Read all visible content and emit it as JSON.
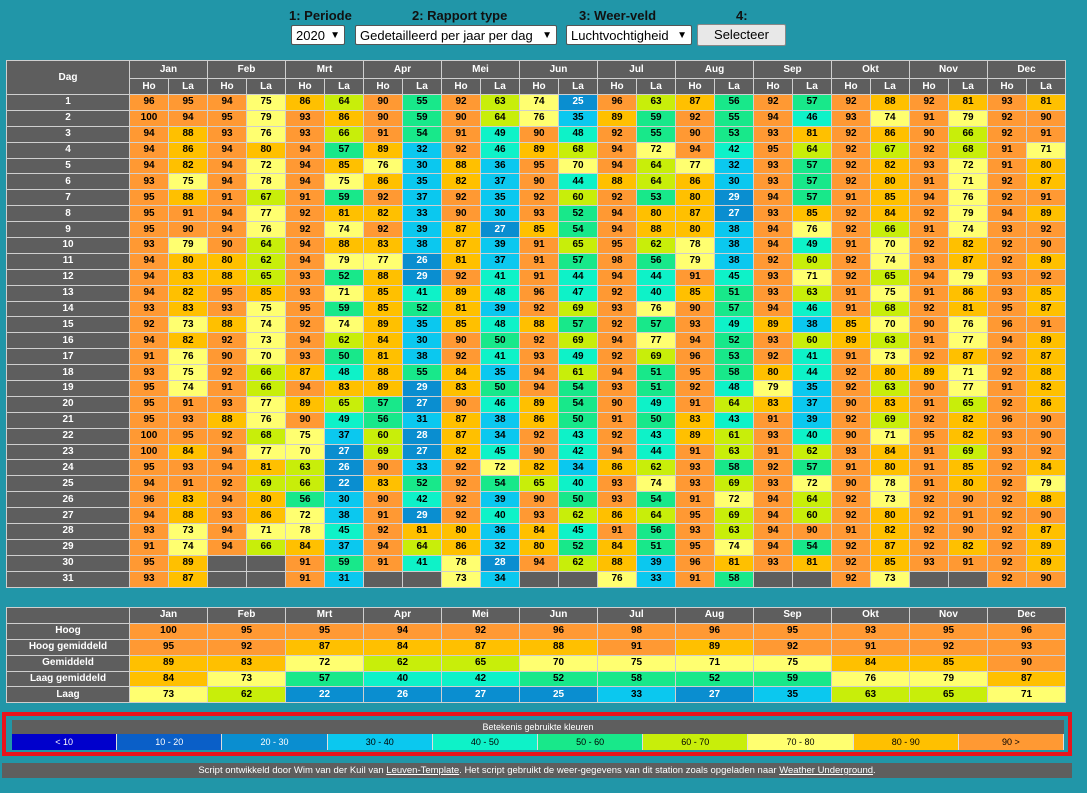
{
  "controls": {
    "periode_label": "1: Periode",
    "periode_value": "2020",
    "rapport_label": "2: Rapport type",
    "rapport_value": "Gedetailleerd per jaar per dag",
    "veld_label": "3: Weer-veld",
    "veld_value": "Luchtvochtigheid",
    "step4_label": "4:",
    "select_button": "Selecteer"
  },
  "table": {
    "day_header": "Dag",
    "months": [
      "Jan",
      "Feb",
      "Mrt",
      "Apr",
      "Mei",
      "Jun",
      "Jul",
      "Aug",
      "Sep",
      "Okt",
      "Nov",
      "Dec"
    ],
    "sub_high": "Ho",
    "sub_low": "La",
    "days": [
      {
        "day": "1",
        "values": [
          96,
          95,
          94,
          75,
          86,
          64,
          90,
          55,
          92,
          63,
          74,
          25,
          96,
          63,
          87,
          56,
          92,
          57,
          92,
          88,
          92,
          81,
          93,
          81
        ]
      },
      {
        "day": "2",
        "values": [
          100,
          94,
          95,
          79,
          93,
          86,
          90,
          59,
          90,
          64,
          76,
          35,
          89,
          59,
          92,
          55,
          94,
          46,
          93,
          74,
          91,
          79,
          92,
          90
        ]
      },
      {
        "day": "3",
        "values": [
          94,
          88,
          93,
          76,
          93,
          66,
          91,
          54,
          91,
          49,
          90,
          48,
          92,
          55,
          90,
          53,
          93,
          81,
          92,
          86,
          90,
          66,
          92,
          91
        ]
      },
      {
        "day": "4",
        "values": [
          94,
          86,
          94,
          80,
          94,
          57,
          89,
          32,
          92,
          46,
          89,
          68,
          94,
          72,
          94,
          42,
          95,
          64,
          92,
          67,
          92,
          68,
          91,
          71
        ]
      },
      {
        "day": "5",
        "values": [
          94,
          82,
          94,
          72,
          94,
          85,
          76,
          30,
          88,
          36,
          95,
          70,
          94,
          64,
          77,
          32,
          93,
          57,
          92,
          82,
          93,
          72,
          91,
          80
        ]
      },
      {
        "day": "6",
        "values": [
          93,
          75,
          94,
          78,
          94,
          75,
          86,
          35,
          82,
          37,
          90,
          44,
          88,
          64,
          86,
          30,
          93,
          57,
          92,
          80,
          91,
          71,
          92,
          87
        ]
      },
      {
        "day": "7",
        "values": [
          95,
          88,
          91,
          67,
          91,
          59,
          92,
          37,
          92,
          35,
          92,
          60,
          92,
          53,
          80,
          29,
          94,
          57,
          91,
          85,
          94,
          76,
          92,
          91
        ]
      },
      {
        "day": "8",
        "values": [
          95,
          91,
          94,
          77,
          92,
          81,
          82,
          33,
          90,
          30,
          93,
          52,
          94,
          80,
          87,
          27,
          93,
          85,
          92,
          84,
          92,
          79,
          94,
          89
        ]
      },
      {
        "day": "9",
        "values": [
          95,
          90,
          94,
          76,
          92,
          74,
          92,
          39,
          87,
          27,
          85,
          54,
          94,
          88,
          80,
          38,
          94,
          76,
          92,
          66,
          91,
          74,
          93,
          92
        ]
      },
      {
        "day": "10",
        "values": [
          93,
          79,
          90,
          64,
          94,
          88,
          83,
          38,
          87,
          39,
          91,
          65,
          95,
          62,
          78,
          38,
          94,
          49,
          91,
          70,
          92,
          82,
          92,
          90
        ]
      },
      {
        "day": "11",
        "values": [
          94,
          80,
          80,
          62,
          94,
          79,
          77,
          26,
          81,
          37,
          91,
          57,
          98,
          56,
          79,
          38,
          92,
          60,
          92,
          74,
          93,
          87,
          92,
          89
        ]
      },
      {
        "day": "12",
        "values": [
          94,
          83,
          88,
          65,
          93,
          52,
          88,
          29,
          92,
          41,
          91,
          44,
          94,
          44,
          91,
          45,
          93,
          71,
          92,
          65,
          94,
          79,
          93,
          92
        ]
      },
      {
        "day": "13",
        "values": [
          94,
          82,
          95,
          85,
          93,
          71,
          85,
          41,
          89,
          48,
          96,
          47,
          92,
          40,
          85,
          51,
          93,
          63,
          91,
          75,
          91,
          86,
          93,
          85
        ]
      },
      {
        "day": "14",
        "values": [
          93,
          83,
          93,
          75,
          95,
          59,
          85,
          52,
          81,
          39,
          92,
          69,
          93,
          76,
          90,
          57,
          94,
          46,
          91,
          68,
          92,
          81,
          95,
          87
        ]
      },
      {
        "day": "15",
        "values": [
          92,
          73,
          88,
          74,
          92,
          74,
          89,
          35,
          85,
          48,
          88,
          57,
          92,
          57,
          93,
          49,
          89,
          38,
          85,
          70,
          90,
          76,
          96,
          91
        ]
      },
      {
        "day": "16",
        "values": [
          94,
          82,
          92,
          73,
          94,
          62,
          84,
          30,
          90,
          50,
          92,
          69,
          94,
          77,
          94,
          52,
          93,
          60,
          89,
          63,
          91,
          77,
          94,
          89
        ]
      },
      {
        "day": "17",
        "values": [
          91,
          76,
          90,
          70,
          93,
          50,
          81,
          38,
          92,
          41,
          93,
          49,
          92,
          69,
          96,
          53,
          92,
          41,
          91,
          73,
          92,
          87,
          92,
          87
        ]
      },
      {
        "day": "18",
        "values": [
          93,
          75,
          92,
          66,
          87,
          48,
          88,
          55,
          84,
          35,
          94,
          61,
          94,
          51,
          95,
          58,
          80,
          44,
          92,
          80,
          89,
          71,
          92,
          88
        ]
      },
      {
        "day": "19",
        "values": [
          95,
          74,
          91,
          66,
          94,
          83,
          89,
          29,
          83,
          50,
          94,
          54,
          93,
          51,
          92,
          48,
          79,
          35,
          92,
          63,
          90,
          77,
          91,
          82
        ]
      },
      {
        "day": "20",
        "values": [
          95,
          91,
          93,
          77,
          89,
          65,
          57,
          27,
          90,
          46,
          89,
          54,
          90,
          49,
          91,
          64,
          83,
          37,
          90,
          83,
          91,
          65,
          92,
          86
        ]
      },
      {
        "day": "21",
        "values": [
          95,
          93,
          88,
          76,
          90,
          49,
          56,
          31,
          87,
          38,
          86,
          50,
          91,
          50,
          83,
          43,
          91,
          39,
          92,
          69,
          92,
          82,
          96,
          90
        ]
      },
      {
        "day": "22",
        "values": [
          100,
          95,
          92,
          68,
          75,
          37,
          60,
          28,
          87,
          34,
          92,
          43,
          92,
          43,
          89,
          61,
          93,
          40,
          90,
          71,
          95,
          82,
          93,
          90
        ]
      },
      {
        "day": "23",
        "values": [
          100,
          84,
          94,
          77,
          70,
          27,
          69,
          27,
          82,
          45,
          90,
          42,
          94,
          44,
          91,
          63,
          91,
          62,
          93,
          84,
          91,
          69,
          93,
          92
        ]
      },
      {
        "day": "24",
        "values": [
          95,
          93,
          94,
          81,
          63,
          26,
          90,
          33,
          92,
          72,
          82,
          34,
          86,
          62,
          93,
          58,
          92,
          57,
          91,
          80,
          91,
          85,
          92,
          84
        ]
      },
      {
        "day": "25",
        "values": [
          94,
          91,
          92,
          69,
          66,
          22,
          83,
          52,
          92,
          54,
          65,
          40,
          93,
          74,
          93,
          69,
          93,
          72,
          90,
          78,
          91,
          80,
          92,
          79
        ]
      },
      {
        "day": "26",
        "values": [
          96,
          83,
          94,
          80,
          56,
          30,
          90,
          42,
          92,
          39,
          90,
          50,
          93,
          54,
          91,
          72,
          94,
          64,
          92,
          73,
          92,
          90,
          92,
          88
        ]
      },
      {
        "day": "27",
        "values": [
          94,
          88,
          93,
          86,
          72,
          38,
          91,
          29,
          92,
          40,
          93,
          62,
          86,
          64,
          95,
          69,
          94,
          60,
          92,
          80,
          92,
          91,
          92,
          90
        ]
      },
      {
        "day": "28",
        "values": [
          93,
          73,
          94,
          71,
          78,
          45,
          92,
          81,
          80,
          36,
          84,
          45,
          91,
          56,
          93,
          63,
          94,
          90,
          91,
          82,
          92,
          90,
          92,
          87
        ]
      },
      {
        "day": "29",
        "values": [
          91,
          74,
          94,
          66,
          84,
          37,
          94,
          64,
          86,
          32,
          80,
          52,
          84,
          51,
          95,
          74,
          94,
          54,
          92,
          87,
          92,
          82,
          92,
          89
        ]
      },
      {
        "day": "30",
        "values": [
          95,
          89,
          null,
          null,
          91,
          59,
          91,
          41,
          78,
          28,
          94,
          62,
          88,
          39,
          96,
          81,
          93,
          81,
          92,
          85,
          93,
          91,
          92,
          89
        ]
      },
      {
        "day": "31",
        "values": [
          93,
          87,
          null,
          null,
          91,
          31,
          null,
          null,
          73,
          34,
          null,
          null,
          76,
          33,
          91,
          58,
          null,
          null,
          92,
          73,
          null,
          null,
          92,
          90
        ]
      }
    ]
  },
  "summary": {
    "rows": [
      {
        "label": "Hoog",
        "values": [
          100,
          95,
          95,
          94,
          92,
          96,
          98,
          96,
          95,
          93,
          95,
          96
        ]
      },
      {
        "label": "Hoog gemiddeld",
        "values": [
          95,
          92,
          87,
          84,
          87,
          88,
          91,
          89,
          92,
          91,
          92,
          93
        ]
      },
      {
        "label": "Gemiddeld",
        "values": [
          89,
          83,
          72,
          62,
          65,
          70,
          75,
          71,
          75,
          84,
          85,
          90
        ]
      },
      {
        "label": "Laag gemiddeld",
        "values": [
          84,
          73,
          57,
          40,
          42,
          52,
          58,
          52,
          59,
          76,
          79,
          87
        ]
      },
      {
        "label": "Laag",
        "values": [
          73,
          62,
          22,
          26,
          27,
          25,
          33,
          27,
          35,
          63,
          65,
          71
        ]
      }
    ]
  },
  "legend": {
    "title": "Betekenis gebruikte kleuren",
    "items": [
      {
        "label": "< 10",
        "color": "#0000cc",
        "text": "#ffffff"
      },
      {
        "label": "10 - 20",
        "color": "#0a5fc8",
        "text": "#ffffff"
      },
      {
        "label": "20 - 30",
        "color": "#0a8ed0",
        "text": "#ffffff"
      },
      {
        "label": "30 - 40",
        "color": "#0bc8ef",
        "text": "#000000"
      },
      {
        "label": "40 - 50",
        "color": "#0ef2c8",
        "text": "#000000"
      },
      {
        "label": "50 - 60",
        "color": "#18e88a",
        "text": "#000000"
      },
      {
        "label": "60 - 70",
        "color": "#c8ee0a",
        "text": "#000000"
      },
      {
        "label": "70 - 80",
        "color": "#ffff70",
        "text": "#000000"
      },
      {
        "label": "80 - 90",
        "color": "#ffc000",
        "text": "#000000"
      },
      {
        "label": "90 >",
        "color": "#ff9933",
        "text": "#000000"
      }
    ]
  },
  "footer": {
    "text1": "Script ontwikkeld door Wim van der Kuil van ",
    "link1": "Leuven-Template",
    "text2": ".  Het script gebruikt de weer-gegevens van dit station zoals opgeladen naar ",
    "link2": "Weather Underground",
    "text3": "."
  }
}
